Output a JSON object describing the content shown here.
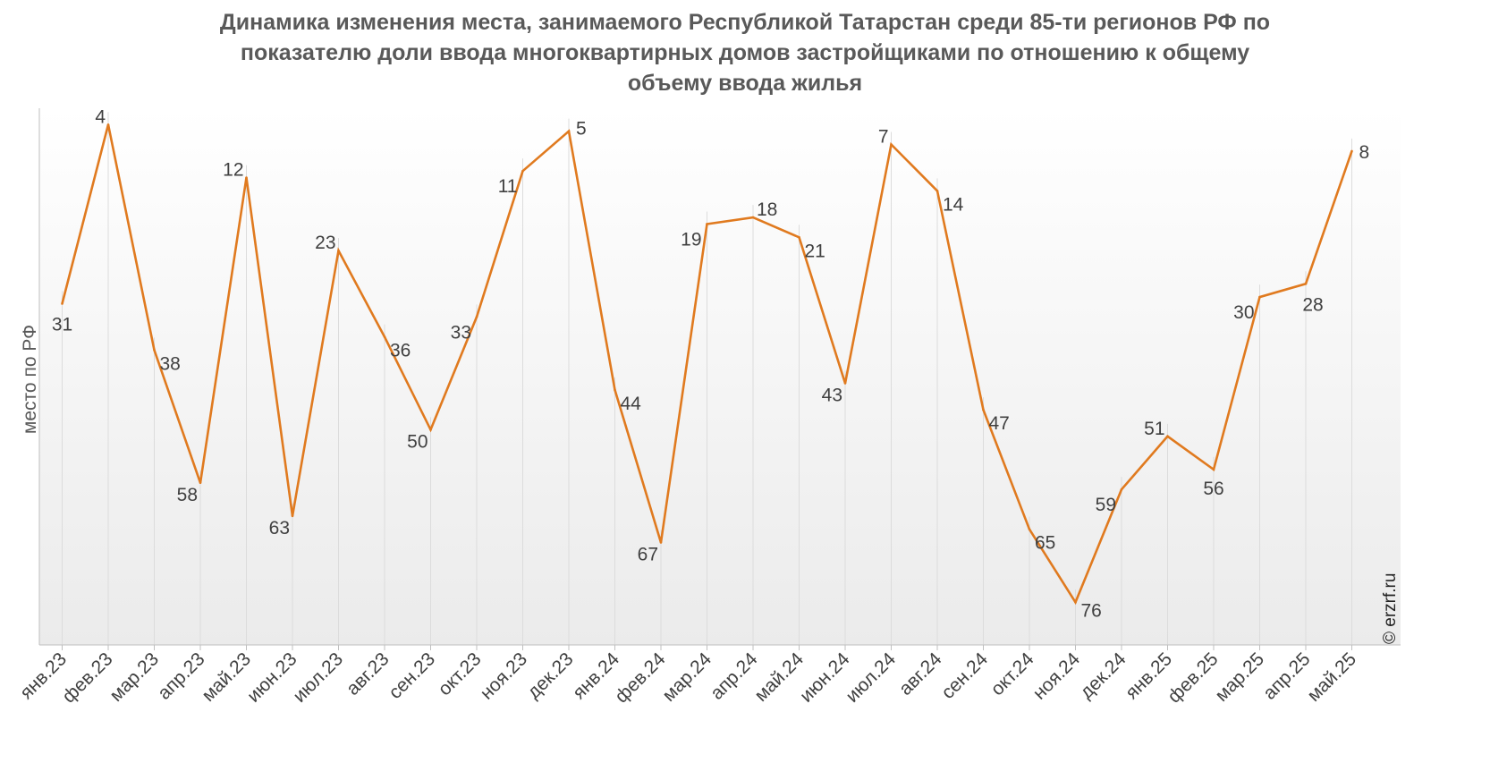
{
  "chart_data": {
    "type": "line",
    "title_lines": [
      "Динамика изменения места, занимаемого Республикой Татарстан среди 85-ти регионов РФ по",
      "показателю доли ввода многоквартирных домов застройщиками по отношению к общему",
      "объему ввода жилья"
    ],
    "ylabel": "место по РФ",
    "xlabel": "",
    "y_reversed": true,
    "ylim": [
      1,
      85
    ],
    "grid": "vertical",
    "categories": [
      "янв.23",
      "фев.23",
      "мар.23",
      "апр.23",
      "май.23",
      "июн.23",
      "июл.23",
      "авг.23",
      "сен.23",
      "окт.23",
      "ноя.23",
      "дек.23",
      "янв.24",
      "фев.24",
      "мар.24",
      "апр.24",
      "май.24",
      "июн.24",
      "июл.24",
      "авг.24",
      "сен.24",
      "окт.24",
      "ноя.24",
      "дек.24",
      "янв.25",
      "фев.25",
      "мар.25",
      "апр.25",
      "май.25"
    ],
    "series": [
      {
        "color": "#E07A1F",
        "values": [
          31,
          4,
          38,
          58,
          12,
          63,
          23,
          36,
          50,
          33,
          11,
          5,
          44,
          67,
          19,
          18,
          21,
          43,
          7,
          14,
          47,
          65,
          76,
          59,
          51,
          56,
          30,
          28,
          8
        ]
      }
    ],
    "data_labels": [
      "31",
      "4",
      "38",
      "58",
      "12",
      "63",
      "23",
      "36",
      "50",
      "33",
      "11",
      "5",
      "44",
      "67",
      "19",
      "18",
      "21",
      "43",
      "7",
      "14",
      "47",
      "65",
      "76",
      "59",
      "51",
      "56",
      "30",
      "28",
      "8"
    ]
  },
  "watermark": "© erzrf.ru"
}
